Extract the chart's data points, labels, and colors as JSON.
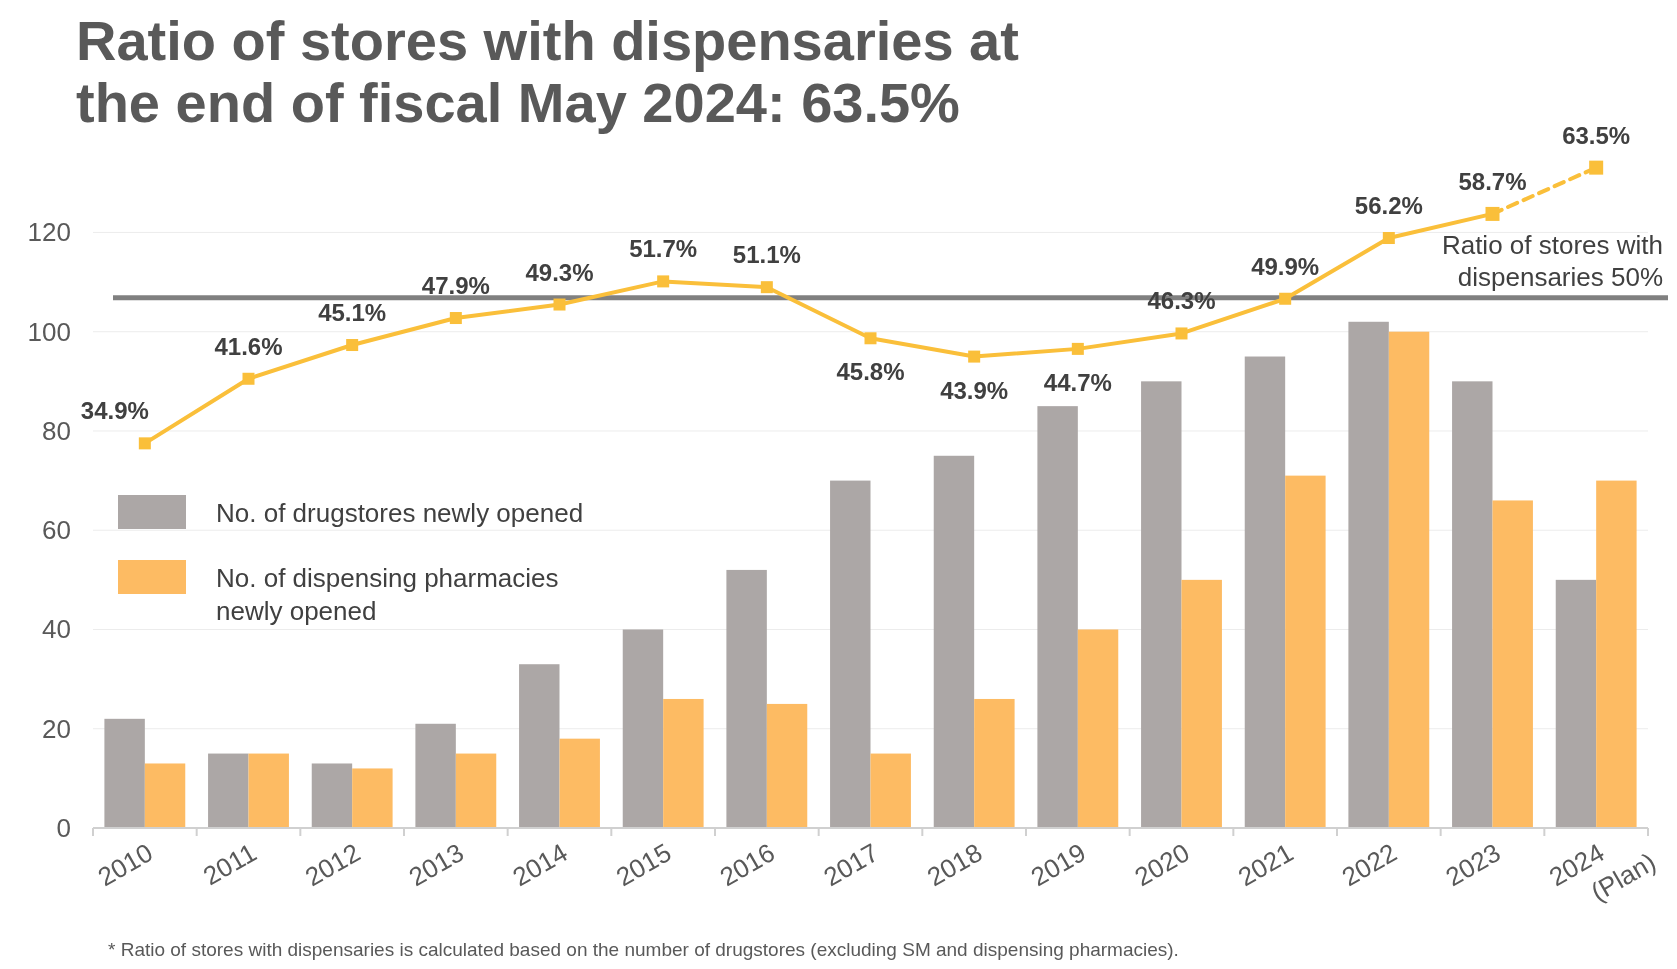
{
  "chart_data": {
    "type": "bar",
    "title": "Ratio of stores with dispensaries at the end of fiscal May 2024: 63.5%",
    "categories": [
      "2010",
      "2011",
      "2012",
      "2013",
      "2014",
      "2015",
      "2016",
      "2017",
      "2018",
      "2019",
      "2020",
      "2021",
      "2022",
      "2023",
      "2024\n(Plan)"
    ],
    "series": [
      {
        "name": "No. of drugstores newly opened",
        "color": "#aca7a6",
        "values": [
          22,
          15,
          13,
          21,
          33,
          40,
          52,
          70,
          75,
          85,
          90,
          95,
          102,
          90,
          50
        ]
      },
      {
        "name": "No. of dispensing pharmacies newly opened",
        "color": "#fdbb63",
        "values": [
          13,
          15,
          12,
          15,
          18,
          26,
          25,
          15,
          26,
          40,
          50,
          71,
          100,
          66,
          70
        ]
      },
      {
        "type": "line",
        "axis": "y2",
        "color": "#fabf3a",
        "line_style": "solid",
        "marker": "square",
        "values": [
          34.9,
          41.6,
          45.1,
          47.9,
          49.3,
          51.7,
          51.1,
          45.8,
          43.9,
          44.7,
          46.3,
          49.9,
          56.2,
          58.7,
          null
        ],
        "value_labels": [
          "34.9%",
          "41.6%",
          "45.1%",
          "47.9%",
          "49.3%",
          "51.7%",
          "51.1%",
          "45.8%",
          "43.9%",
          "44.7%",
          "46.3%",
          "49.9%",
          "56.2%",
          "58.7%",
          null
        ]
      },
      {
        "type": "line",
        "axis": "y2",
        "color": "#fabf3a",
        "line_style": "dashed",
        "marker": "square",
        "values": [
          null,
          null,
          null,
          null,
          null,
          null,
          null,
          null,
          null,
          null,
          null,
          null,
          null,
          58.7,
          63.5
        ],
        "value_labels": [
          null,
          null,
          null,
          null,
          null,
          null,
          null,
          null,
          null,
          null,
          null,
          null,
          null,
          null,
          "63.5%"
        ]
      }
    ],
    "ylim": [
      0,
      135
    ],
    "yticks": [
      0,
      20,
      40,
      60,
      80,
      100,
      120
    ],
    "y2lim": [
      -5,
      64.5
    ],
    "grid": "y",
    "legend": "left",
    "ref_lines": [
      {
        "axis": "y2",
        "value": 50,
        "label": "Ratio of stores with dispensaries 50%",
        "color": "#808080"
      }
    ],
    "annotations": [
      "* Ratio of stores with dispensaries is calculated based on the number of drugstores (excluding SM and dispensing pharmacies)."
    ]
  }
}
